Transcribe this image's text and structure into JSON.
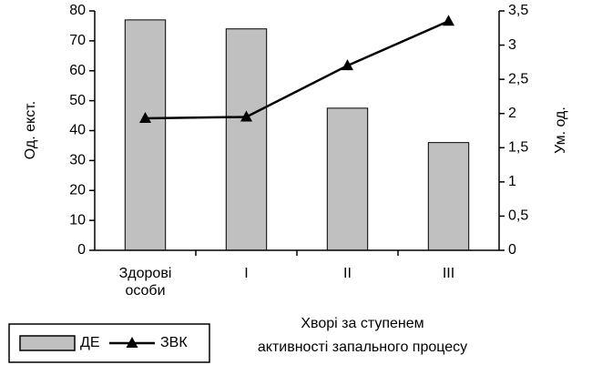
{
  "chart_data": {
    "type": "bar_line",
    "categories": [
      "Здорові особи",
      "I",
      "II",
      "III"
    ],
    "series": [
      {
        "name": "ДЕ",
        "type": "bar",
        "color": "#c0c0c0",
        "values": [
          77,
          74,
          47.5,
          36
        ]
      },
      {
        "name": "ЗВК",
        "type": "line",
        "color": "#000000",
        "axis": "y2",
        "values": [
          1.93,
          1.95,
          2.7,
          3.35
        ]
      }
    ],
    "y_label": "Од. екст.",
    "y2_label": "Ум. од.",
    "x_label": [
      "Хворі за ступенем",
      "активності запального процесу"
    ],
    "ylim": [
      0,
      80
    ],
    "yticks": [
      0,
      10,
      20,
      30,
      40,
      50,
      60,
      70,
      80
    ],
    "y2lim": [
      0,
      3.5
    ],
    "y2ticks": [
      0,
      {
        "value": 0.5,
        "label": "0,5"
      },
      1,
      {
        "value": 1.5,
        "label": "1,5"
      },
      2,
      {
        "value": 2.5,
        "label": "2,5"
      },
      3,
      {
        "value": 3.5,
        "label": "3,5"
      }
    ],
    "legend": "bottom-left"
  }
}
